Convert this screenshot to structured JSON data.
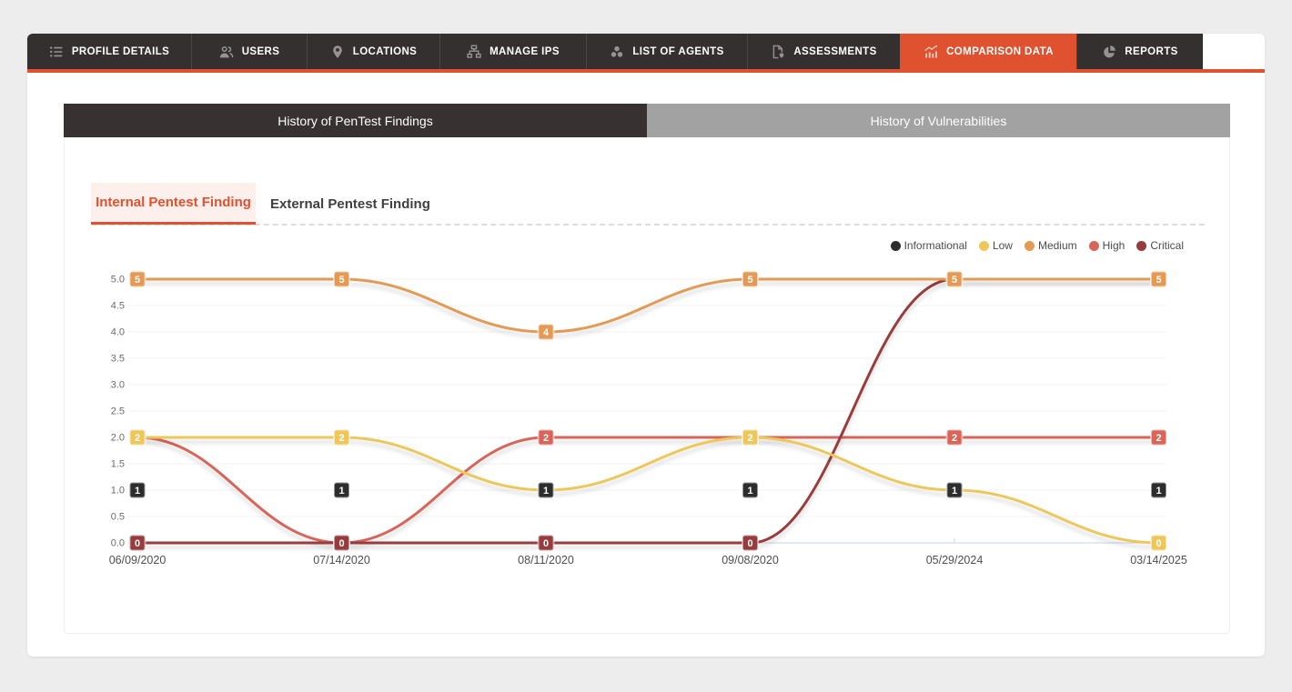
{
  "nav": {
    "active_color": "#e0512f",
    "items": [
      {
        "label": "PROFILE DETAILS",
        "icon": "list",
        "active": false
      },
      {
        "label": "USERS",
        "icon": "users",
        "active": false
      },
      {
        "label": "LOCATIONS",
        "icon": "location-pin",
        "active": false
      },
      {
        "label": "MANAGE IPS",
        "icon": "sitemap",
        "active": false
      },
      {
        "label": "LIST OF AGENTS",
        "icon": "agents-cluster",
        "active": false
      },
      {
        "label": "ASSESSMENTS",
        "icon": "document-shield",
        "active": false
      },
      {
        "label": "COMPARISON DATA",
        "icon": "comparison-chart",
        "active": true
      },
      {
        "label": "REPORTS",
        "icon": "pie-chart",
        "active": false
      }
    ]
  },
  "toggle": {
    "left": "History of PenTest Findings",
    "right": "History of Vulnerabilities"
  },
  "subtabs": {
    "active": "Internal Pentest Finding",
    "inactive": "External Pentest Finding"
  },
  "chart_data": {
    "type": "line",
    "title": "",
    "categories": [
      "06/09/2020",
      "07/14/2020",
      "08/11/2020",
      "09/08/2020",
      "05/29/2024",
      "03/14/2025"
    ],
    "series": [
      {
        "name": "Informational",
        "color": "#2d2d2d",
        "values": [
          1,
          1,
          1,
          1,
          1,
          1
        ]
      },
      {
        "name": "Low",
        "color": "#edc75c",
        "values": [
          2,
          2,
          1,
          2,
          1,
          0
        ]
      },
      {
        "name": "Medium",
        "color": "#e49a55",
        "values": [
          5,
          5,
          4,
          5,
          5,
          5
        ]
      },
      {
        "name": "High",
        "color": "#d9655a",
        "values": [
          2,
          0,
          2,
          2,
          2,
          2
        ]
      },
      {
        "name": "Critical",
        "color": "#973c3c",
        "values": [
          0,
          0,
          0,
          0,
          5,
          5
        ]
      }
    ],
    "paint_order": [
      3,
      4,
      2,
      1,
      0
    ],
    "y_ticks": [
      "0.0",
      "0.5",
      "1.0",
      "1.5",
      "2.0",
      "2.5",
      "3.0",
      "3.5",
      "4.0",
      "4.5",
      "5.0"
    ],
    "ylim": [
      0,
      5
    ],
    "grid": true,
    "legend_position": "top-right",
    "axis_color": "#c9d3e6",
    "grid_color": "#f3f3f3"
  }
}
